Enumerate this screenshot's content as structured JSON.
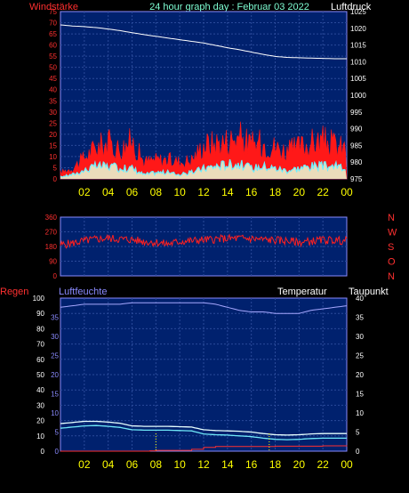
{
  "header": {
    "left_label": "Windstärke",
    "title": "24 hour graph day : Februar 03 2022",
    "right_label": "Luftdruck"
  },
  "colors": {
    "background": "#000000",
    "plot_bg": "#00216e",
    "grid": "#2a4a9a",
    "frame": "#8a8aff",
    "wind_gust": "#ff1818",
    "wind_avg": "#6bf0ff",
    "wind_light": "#e8ffd8",
    "pressure": "#ffffff",
    "direction": "#ff2020",
    "humidity": "#a8a8ff",
    "temperature": "#e8ffff",
    "dewpoint": "#70e8f8",
    "rain": "#ff3030",
    "tick_x": "#ffff00",
    "tick_left_red": "#ff3030",
    "tick_right": "#ffffff",
    "title_text": "#7fffd4",
    "humidity_label": "#8a8aff"
  },
  "chart_data": [
    {
      "type": "area",
      "name": "wind-pressure",
      "x_ticks": [
        "02",
        "04",
        "06",
        "08",
        "10",
        "12",
        "14",
        "16",
        "18",
        "20",
        "22",
        "00"
      ],
      "y_left": {
        "label": "Windstärke",
        "ticks": [
          0,
          5,
          10,
          15,
          20,
          25,
          30,
          35,
          40,
          45,
          50,
          55,
          60,
          65,
          70,
          75
        ],
        "range": [
          0,
          75
        ]
      },
      "y_right": {
        "label": "Luftdruck",
        "ticks": [
          975,
          980,
          985,
          990,
          995,
          1000,
          1005,
          1010,
          1015,
          1020,
          1025
        ],
        "range": [
          975,
          1025
        ]
      },
      "pressure": {
        "hours": [
          0,
          1,
          2,
          3,
          4,
          5,
          6,
          7,
          8,
          9,
          10,
          11,
          12,
          13,
          14,
          15,
          16,
          17,
          18,
          19,
          20,
          21,
          22,
          23,
          24
        ],
        "values": [
          1021,
          1020.7,
          1020.5,
          1020.2,
          1019.8,
          1019.3,
          1018.7,
          1018.1,
          1017.6,
          1017.1,
          1016.6,
          1016.1,
          1015.6,
          1014.9,
          1014.2,
          1013.6,
          1012.9,
          1012.2,
          1011.6,
          1011.3,
          1011.2,
          1011.1,
          1011.0,
          1010.9,
          1010.9
        ]
      },
      "gust": {
        "hours": [
          0,
          1,
          2,
          3,
          4,
          5,
          6,
          7,
          8,
          9,
          10,
          11,
          12,
          13,
          14,
          15,
          16,
          17,
          18,
          19,
          20,
          21,
          22,
          23,
          24
        ],
        "values": [
          3,
          5,
          10,
          15,
          17,
          14,
          18,
          8,
          9,
          9,
          8,
          9,
          16,
          17,
          18,
          20,
          16,
          17,
          15,
          13,
          15,
          17,
          18,
          16,
          14
        ]
      },
      "average": {
        "hours": [
          0,
          1,
          2,
          3,
          4,
          5,
          6,
          7,
          8,
          9,
          10,
          11,
          12,
          13,
          14,
          15,
          16,
          17,
          18,
          19,
          20,
          21,
          22,
          23,
          24
        ],
        "values": [
          1,
          2,
          4,
          6,
          6,
          5,
          5,
          2,
          3,
          3,
          2,
          3,
          5,
          6,
          7,
          7,
          5,
          6,
          5,
          4,
          5,
          6,
          6,
          6,
          5
        ]
      }
    },
    {
      "type": "scatter",
      "name": "wind-direction",
      "y_left": {
        "ticks": [
          0,
          90,
          180,
          270,
          360
        ],
        "range": [
          0,
          360
        ]
      },
      "y_right_labels": [
        "N",
        "W",
        "S",
        "O",
        "N"
      ],
      "direction": {
        "hours": [
          0,
          1,
          2,
          3,
          4,
          5,
          6,
          7,
          8,
          9,
          10,
          11,
          12,
          13,
          14,
          15,
          16,
          17,
          18,
          19,
          20,
          21,
          22,
          23,
          24
        ],
        "values": [
          190,
          200,
          215,
          225,
          230,
          225,
          222,
          210,
          205,
          195,
          210,
          215,
          220,
          225,
          228,
          230,
          228,
          222,
          218,
          215,
          205,
          212,
          220,
          218,
          215
        ]
      }
    },
    {
      "type": "line",
      "name": "humidity-temperature",
      "left_label": "Regen",
      "humidity_label": "Luftfeuchte",
      "temperature_label": "Temperatur",
      "dewpoint_label": "Taupunkt",
      "x_ticks": [
        "02",
        "04",
        "06",
        "08",
        "10",
        "12",
        "14",
        "16",
        "18",
        "20",
        "22",
        "00"
      ],
      "y_left": {
        "ticks": [
          0,
          10,
          20,
          30,
          40,
          50,
          60,
          70,
          80,
          90,
          100
        ],
        "range": [
          0,
          100
        ]
      },
      "y_humidity_ticks": [
        0,
        5,
        10,
        15,
        20,
        25,
        30,
        35
      ],
      "y_right": {
        "ticks": [
          0,
          5,
          10,
          15,
          20,
          25,
          30,
          35,
          40
        ],
        "range": [
          0,
          40
        ]
      },
      "humidity": {
        "hours": [
          0,
          1,
          2,
          3,
          4,
          5,
          6,
          7,
          8,
          9,
          10,
          11,
          12,
          13,
          14,
          15,
          16,
          17,
          18,
          19,
          20,
          21,
          22,
          23,
          24
        ],
        "values": [
          94,
          95,
          96,
          96,
          96,
          96,
          97,
          97,
          97,
          97,
          97,
          97,
          97,
          96,
          94,
          92,
          91,
          91,
          90,
          90,
          90,
          92,
          93,
          94,
          95
        ]
      },
      "temperature": {
        "hours": [
          0,
          1,
          2,
          3,
          4,
          5,
          6,
          7,
          8,
          9,
          10,
          11,
          12,
          13,
          14,
          15,
          16,
          17,
          18,
          19,
          20,
          21,
          22,
          23,
          24
        ],
        "values": [
          7.2,
          7.5,
          7.8,
          7.8,
          7.6,
          7.3,
          6.6,
          6.5,
          6.5,
          6.5,
          6.4,
          6.3,
          5.6,
          5.4,
          5.3,
          5.2,
          5.0,
          4.6,
          4.3,
          4.2,
          4.3,
          4.5,
          4.6,
          4.6,
          4.6
        ]
      },
      "dewpoint": {
        "hours": [
          0,
          1,
          2,
          3,
          4,
          5,
          6,
          7,
          8,
          9,
          10,
          11,
          12,
          13,
          14,
          15,
          16,
          17,
          18,
          19,
          20,
          21,
          22,
          23,
          24
        ],
        "values": [
          6.0,
          6.3,
          6.6,
          6.7,
          6.5,
          6.2,
          5.6,
          5.5,
          5.5,
          5.5,
          5.4,
          5.3,
          4.5,
          4.3,
          4.2,
          4.0,
          3.8,
          3.4,
          3.1,
          3.0,
          3.1,
          3.3,
          3.4,
          3.4,
          3.4
        ]
      },
      "rain": {
        "hours": [
          0,
          6,
          7.5,
          8,
          10,
          11,
          12,
          13,
          18,
          20,
          22,
          24
        ],
        "values": [
          0,
          0,
          0.1,
          0.2,
          0.2,
          0.5,
          1.0,
          1.2,
          1.3,
          1.3,
          1.4,
          1.5
        ]
      }
    }
  ]
}
